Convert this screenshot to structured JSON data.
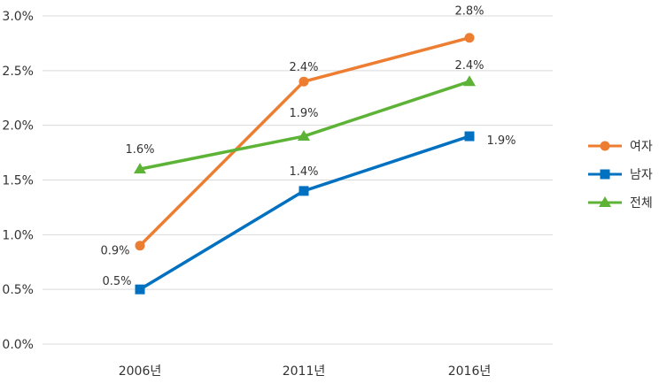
{
  "chart_data": {
    "type": "line",
    "categories": [
      "2006년",
      "2011년",
      "2016년"
    ],
    "ylim": [
      0,
      3.0
    ],
    "yticks": [
      "0.0%",
      "0.5%",
      "1.0%",
      "1.5%",
      "2.0%",
      "2.5%",
      "3.0%"
    ],
    "grid": true,
    "legend_position": "right",
    "series": [
      {
        "name": "여자",
        "color": "#ed7d31",
        "marker": "circle",
        "values": [
          0.9,
          2.4,
          2.8
        ],
        "labels": [
          "0.9%",
          "2.4%",
          "2.8%"
        ]
      },
      {
        "name": "남자",
        "color": "#0070c0",
        "marker": "square",
        "values": [
          0.5,
          1.4,
          1.9
        ],
        "labels": [
          "0.5%",
          "1.4%",
          "1.9%"
        ]
      },
      {
        "name": "전체",
        "color": "#5db336",
        "marker": "triangle",
        "values": [
          1.6,
          1.9,
          2.4
        ],
        "labels": [
          "1.6%",
          "1.9%",
          "2.4%"
        ]
      }
    ]
  }
}
